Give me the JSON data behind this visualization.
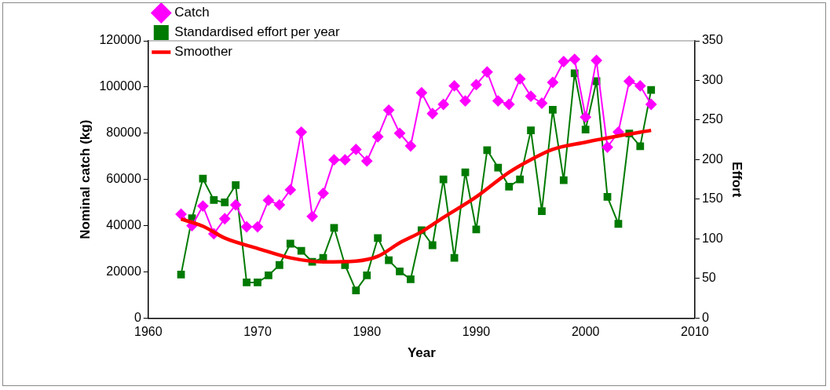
{
  "chart_data": {
    "type": "line",
    "xlabel": "Year",
    "ylabel": "Nominal catch (kg)",
    "y2label": "Effort",
    "xlim": [
      1960,
      2010
    ],
    "xticks": [
      1960,
      1970,
      1980,
      1990,
      2000,
      2010
    ],
    "ylim": [
      0,
      120000
    ],
    "yticks": [
      0,
      20000,
      40000,
      60000,
      80000,
      100000,
      120000
    ],
    "y2lim": [
      0,
      350
    ],
    "y2ticks": [
      0,
      50,
      100,
      150,
      200,
      250,
      300,
      350
    ],
    "grid": false,
    "legend": "top left",
    "x": [
      1963,
      1964,
      1965,
      1966,
      1967,
      1968,
      1969,
      1970,
      1971,
      1972,
      1973,
      1974,
      1975,
      1976,
      1977,
      1978,
      1979,
      1980,
      1981,
      1982,
      1983,
      1984,
      1985,
      1986,
      1987,
      1988,
      1989,
      1990,
      1991,
      1992,
      1993,
      1994,
      1995,
      1996,
      1997,
      1998,
      1999,
      2000,
      2001,
      2002,
      2003,
      2004,
      2005,
      2006
    ],
    "series": [
      {
        "name": "Catch",
        "color": "#ff00ff",
        "marker": "diamond",
        "values": [
          45000,
          40000,
          48500,
          36500,
          43000,
          49000,
          39500,
          39500,
          51000,
          49000,
          55500,
          80500,
          44000,
          54000,
          68500,
          68500,
          73000,
          68000,
          78500,
          90000,
          80000,
          74500,
          97500,
          88500,
          92500,
          100500,
          94000,
          101000,
          106500,
          94000,
          92500,
          103500,
          96000,
          93000,
          102000,
          111000,
          112000,
          87000,
          111500,
          74000,
          80500,
          102500,
          100500,
          92500
        ]
      },
      {
        "name": "Standardised effort per year",
        "color": "#007a00",
        "marker": "square",
        "axis": "y2",
        "values": [
          55,
          126,
          176,
          149,
          146,
          168,
          45,
          45,
          54,
          67,
          94,
          85,
          71,
          76,
          114,
          67,
          35,
          54,
          101,
          73,
          59,
          49,
          111,
          92,
          175,
          76,
          184,
          112,
          212,
          190,
          166,
          175,
          237,
          135,
          263,
          174,
          309,
          238,
          299,
          153,
          119,
          233,
          217,
          288
        ]
      },
      {
        "name": "Smoother",
        "color": "#ff0000",
        "marker": "none",
        "axis": "y2",
        "x": [
          1963,
          1965,
          1967,
          1970,
          1973,
          1976,
          1979,
          1981,
          1983,
          1985,
          1987,
          1990,
          1993,
          1995,
          1997,
          2000,
          2003,
          2006
        ],
        "values": [
          125,
          116,
          101,
          88,
          76,
          71,
          72,
          78,
          95,
          109,
          127,
          153,
          184,
          200,
          213,
          222,
          230,
          237
        ]
      }
    ]
  }
}
